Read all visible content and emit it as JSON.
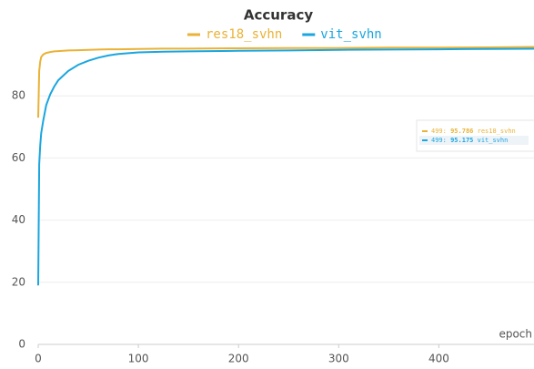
{
  "chart_data": {
    "type": "line",
    "title": "Accuracy",
    "xlabel": "epoch",
    "x": [
      0,
      1,
      2,
      3,
      5,
      8,
      12,
      16,
      20,
      25,
      30,
      40,
      50,
      60,
      70,
      80,
      100,
      125,
      150,
      200,
      250,
      300,
      350,
      400,
      450,
      499
    ],
    "series": [
      {
        "name": "res18_svhn",
        "color": "#eab236",
        "values": [
          73,
          88,
          91,
          92.5,
          93.3,
          93.8,
          94.1,
          94.3,
          94.4,
          94.5,
          94.6,
          94.7,
          94.8,
          94.9,
          95,
          95,
          95.1,
          95.2,
          95.2,
          95.3,
          95.4,
          95.4,
          95.5,
          95.5,
          95.6,
          95.786
        ]
      },
      {
        "name": "vit_svhn",
        "color": "#1aa6df",
        "values": [
          19,
          58,
          64,
          68,
          72,
          77,
          80.5,
          83,
          85,
          86.5,
          88,
          90,
          91.3,
          92.3,
          93,
          93.5,
          94,
          94.2,
          94.3,
          94.5,
          94.6,
          94.8,
          94.9,
          95,
          95.1,
          95.175
        ]
      }
    ],
    "xlim": [
      0,
      495
    ],
    "ylim": [
      0,
      100
    ],
    "xticks": [
      0,
      100,
      200,
      300,
      400
    ],
    "yticks": [
      0,
      20,
      40,
      60,
      80
    ],
    "grid": true
  }
}
